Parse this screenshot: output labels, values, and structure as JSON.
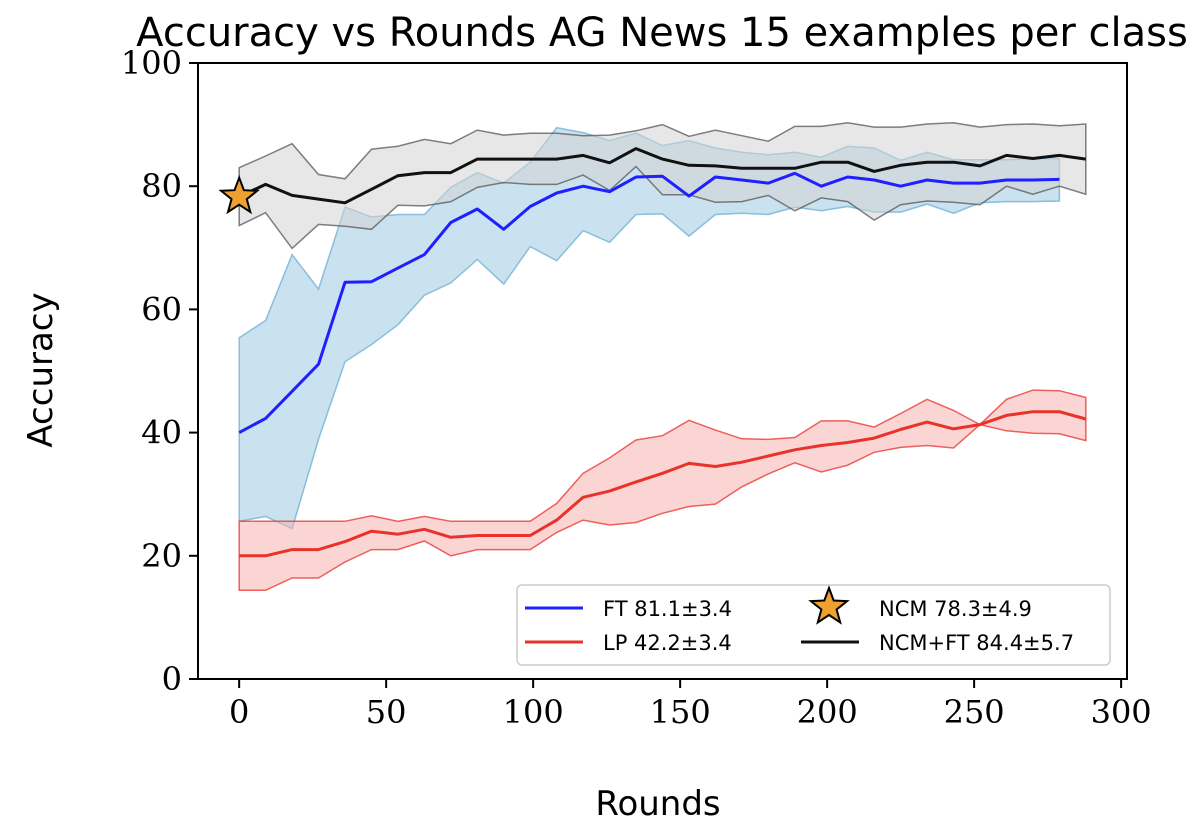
{
  "chart_data": {
    "type": "line",
    "title": "Accuracy vs Rounds AG News 15 examples per class",
    "xlabel": "Rounds",
    "ylabel": "Accuracy",
    "xlim": [
      -14,
      302
    ],
    "ylim": [
      0,
      100
    ],
    "xticks": [
      0,
      50,
      100,
      150,
      200,
      250,
      300
    ],
    "yticks": [
      0,
      20,
      40,
      60,
      80,
      100
    ],
    "grid": false,
    "legend_position": "lower-right",
    "series": [
      {
        "name": "FT 81.1±3.4",
        "type": "line_band",
        "color": "#1f1fff",
        "band_color": "#9ecae1",
        "band_edge_color": "#6aaed6",
        "x": [
          0,
          9,
          18,
          27,
          36,
          45,
          54,
          63,
          72,
          81,
          90,
          99,
          108,
          117,
          126,
          135,
          144,
          153,
          162,
          171,
          180,
          189,
          198,
          207,
          216,
          225,
          234,
          243,
          252,
          261,
          270,
          279
        ],
        "mean": [
          40,
          42.3,
          46.7,
          51.1,
          64.4,
          64.5,
          66.7,
          68.9,
          74.1,
          76.3,
          73.0,
          76.7,
          78.9,
          80.0,
          79.1,
          81.5,
          81.6,
          78.4,
          81.5,
          81.0,
          80.5,
          82.1,
          80.0,
          81.5,
          81.0,
          80.0,
          81.0,
          80.5,
          80.5,
          81.0,
          81.0,
          81.1
        ],
        "upper": [
          55.4,
          58.2,
          68.9,
          63.3,
          76.6,
          75.0,
          75.4,
          75.4,
          79.8,
          82.2,
          80.5,
          83.9,
          89.5,
          88.7,
          87.4,
          88.6,
          86.6,
          87.4,
          86.2,
          85.5,
          85.1,
          85.5,
          84.7,
          86.5,
          86.2,
          84.2,
          85.5,
          84.3,
          84.3,
          84.3,
          84.5,
          84.5
        ],
        "lower": [
          25.6,
          26.4,
          24.4,
          38.9,
          51.5,
          54.3,
          57.5,
          62.3,
          64.3,
          68.1,
          64.1,
          70.2,
          67.9,
          72.8,
          70.9,
          75.4,
          75.5,
          71.9,
          75.4,
          75.6,
          75.4,
          76.6,
          76.0,
          76.7,
          75.8,
          75.8,
          77.1,
          75.6,
          77.3,
          77.5,
          77.5,
          77.6
        ]
      },
      {
        "name": "LP 42.2±3.4",
        "type": "line_band",
        "color": "#e8322a",
        "band_color": "#f6b3b1",
        "band_edge_color": "#e8322a",
        "x": [
          0,
          9,
          18,
          27,
          36,
          45,
          54,
          63,
          72,
          81,
          90,
          99,
          108,
          117,
          126,
          135,
          144,
          153,
          162,
          171,
          180,
          189,
          198,
          207,
          216,
          225,
          234,
          243,
          252,
          261,
          270,
          279,
          288
        ],
        "mean": [
          20.0,
          20.0,
          21.0,
          21.0,
          22.3,
          24.0,
          23.5,
          24.3,
          23.0,
          23.3,
          23.3,
          23.3,
          25.8,
          29.5,
          30.5,
          32.0,
          33.4,
          35.0,
          34.5,
          35.2,
          36.2,
          37.2,
          37.9,
          38.4,
          39.1,
          40.5,
          41.7,
          40.6,
          41.3,
          42.8,
          43.4,
          43.4,
          42.2
        ],
        "upper": [
          25.6,
          25.6,
          25.6,
          25.6,
          25.6,
          26.5,
          25.6,
          26.4,
          25.6,
          25.6,
          25.6,
          25.6,
          28.5,
          33.4,
          35.9,
          38.8,
          39.5,
          42.0,
          40.4,
          39.0,
          38.9,
          39.2,
          41.9,
          41.9,
          40.9,
          43.1,
          45.4,
          43.6,
          41.3,
          45.4,
          46.9,
          46.8,
          45.7
        ],
        "lower": [
          14.4,
          14.4,
          16.4,
          16.4,
          19.0,
          21.0,
          21.0,
          22.4,
          20.0,
          21.0,
          21.0,
          21.0,
          23.8,
          25.8,
          25.0,
          25.4,
          26.9,
          28.0,
          28.4,
          31.2,
          33.3,
          35.1,
          33.6,
          34.7,
          36.8,
          37.6,
          37.9,
          37.5,
          41.3,
          40.3,
          39.9,
          39.8,
          38.7
        ]
      },
      {
        "name": "NCM+FT 84.4±5.7",
        "type": "line_band",
        "color": "#111111",
        "band_color": "#d4d4d4",
        "band_edge_color": "#555555",
        "x": [
          0,
          9,
          18,
          27,
          36,
          45,
          54,
          63,
          72,
          81,
          90,
          99,
          108,
          117,
          126,
          135,
          144,
          153,
          162,
          171,
          180,
          189,
          198,
          207,
          216,
          225,
          234,
          243,
          252,
          261,
          270,
          279,
          288
        ],
        "mean": [
          78.3,
          80.3,
          78.5,
          77.9,
          77.3,
          79.5,
          81.7,
          82.2,
          82.2,
          84.4,
          84.4,
          84.4,
          84.4,
          85.0,
          83.8,
          86.1,
          84.4,
          83.4,
          83.3,
          82.9,
          82.9,
          82.9,
          83.9,
          83.9,
          82.4,
          83.4,
          83.9,
          83.9,
          83.3,
          85.0,
          84.5,
          85.0,
          84.4
        ],
        "upper": [
          83.0,
          84.9,
          86.9,
          81.9,
          81.2,
          86.0,
          86.5,
          87.6,
          86.9,
          89.1,
          88.3,
          88.6,
          88.6,
          88.2,
          88.3,
          89.0,
          90.0,
          88.1,
          89.1,
          88.2,
          87.3,
          89.7,
          89.7,
          90.3,
          89.6,
          89.6,
          90.1,
          90.3,
          89.6,
          90.0,
          90.1,
          89.8,
          90.1
        ],
        "lower": [
          73.6,
          75.7,
          69.9,
          73.8,
          73.5,
          73.0,
          76.9,
          76.8,
          77.5,
          79.8,
          80.6,
          80.3,
          80.3,
          81.8,
          79.3,
          83.2,
          78.6,
          78.6,
          77.4,
          77.5,
          78.5,
          76.0,
          78.1,
          77.5,
          74.5,
          77.0,
          77.6,
          77.4,
          77.0,
          80.0,
          78.7,
          80.0,
          78.7
        ]
      },
      {
        "name": "NCM 78.3±4.9",
        "type": "marker",
        "marker": "star",
        "color": "#f0a030",
        "edge_color": "#000000",
        "x": [
          0
        ],
        "y": [
          78.3
        ]
      }
    ],
    "legend": [
      {
        "label": "FT 81.1±3.4",
        "color": "#1f1fff",
        "kind": "line"
      },
      {
        "label": "LP 42.2±3.4",
        "color": "#e8322a",
        "kind": "line"
      },
      {
        "label": "NCM 78.3±4.9",
        "color": "#f0a030",
        "kind": "star"
      },
      {
        "label": "NCM+FT 84.4±5.7",
        "color": "#111111",
        "kind": "line"
      }
    ]
  }
}
